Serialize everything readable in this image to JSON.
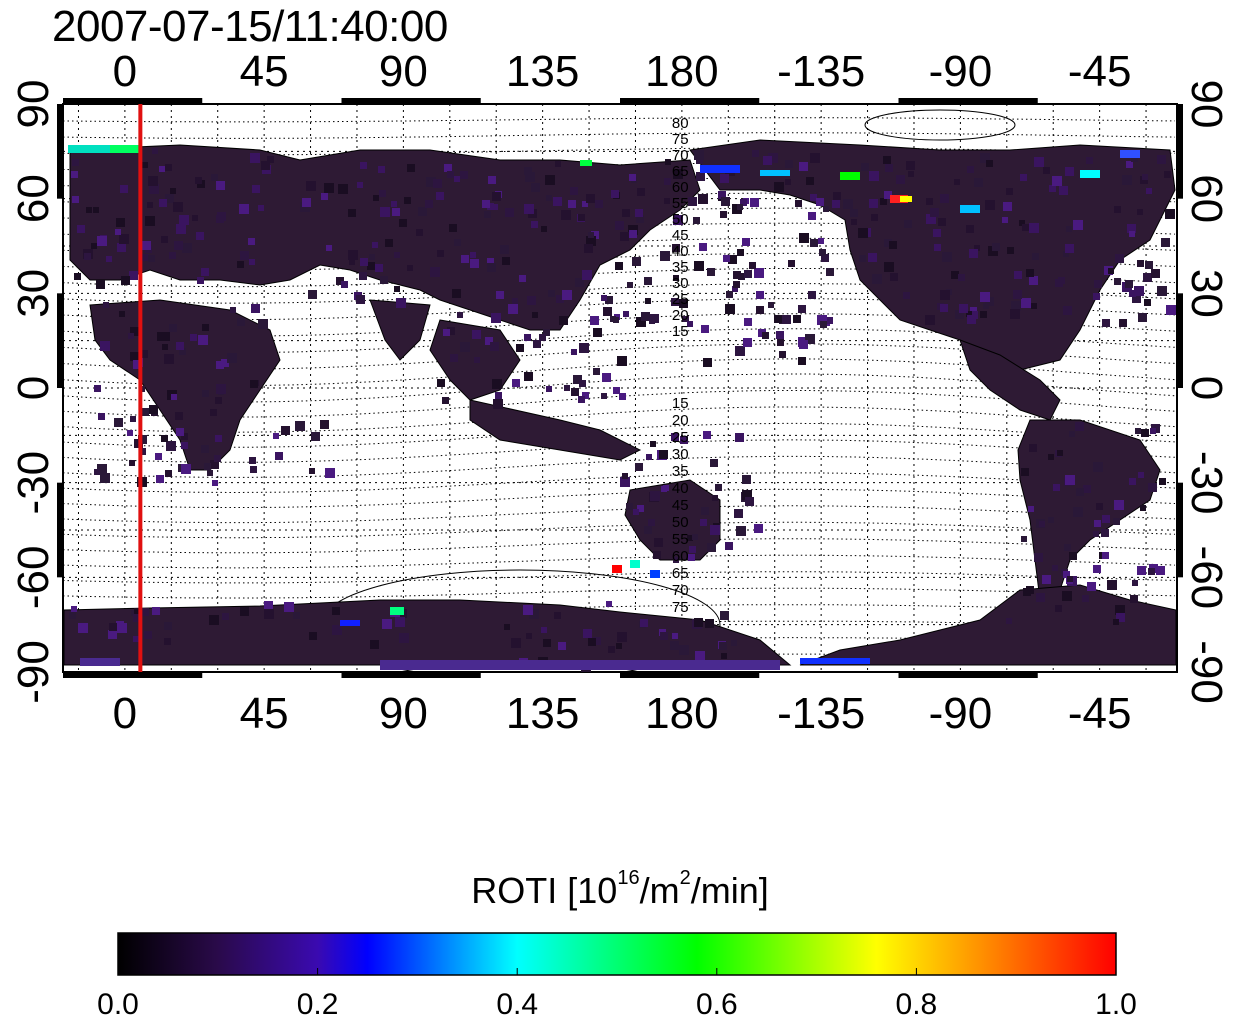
{
  "title": "2007-07-15/11:40:00",
  "map": {
    "lon_ticks_top": [
      "0",
      "45",
      "90",
      "135",
      "180",
      "-135",
      "-90",
      "-45"
    ],
    "lon_ticks_bottom": [
      "0",
      "45",
      "90",
      "135",
      "180",
      "-135",
      "-90",
      "-45"
    ],
    "lat_ticks_left": [
      "90",
      "60",
      "30",
      "0",
      "-30",
      "-60",
      "-90"
    ],
    "lat_ticks_right": [
      "90",
      "60",
      "30",
      "0",
      "-30",
      "-60",
      "-90"
    ],
    "contour_labels_north": [
      "80",
      "75",
      "70",
      "65",
      "60",
      "55",
      "50",
      "45",
      "40",
      "35",
      "30",
      "25",
      "20",
      "15"
    ],
    "contour_labels_south": [
      "15",
      "20",
      "25",
      "30",
      "35",
      "40",
      "45",
      "50",
      "55",
      "60",
      "65",
      "70",
      "75"
    ],
    "terminator_longitude": 5,
    "terminator_color": "#e01010"
  },
  "colorbar": {
    "label_prefix": "ROTI  [10",
    "label_sup1": "16",
    "label_mid": "/m",
    "label_sup2": "2",
    "label_suffix": "/min]",
    "ticks": [
      "0.0",
      "0.2",
      "0.4",
      "0.6",
      "0.8",
      "1.0"
    ],
    "colors": [
      "#000000",
      "#3a0a6e",
      "#0000ff",
      "#00ffff",
      "#00ff00",
      "#ffff00",
      "#ff8000",
      "#ff0000"
    ]
  }
}
